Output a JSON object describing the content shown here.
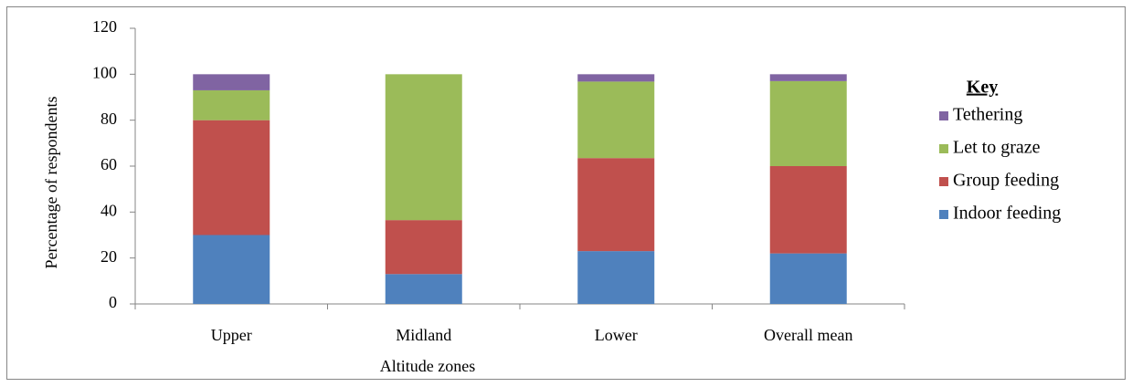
{
  "chart_data": {
    "type": "stacked_bar",
    "x_label": "Altitude zones",
    "y_label": "Percentage of respondents",
    "legend_title": "Key",
    "categories": [
      "Upper",
      "Midland",
      "Lower",
      "Overall mean"
    ],
    "series": [
      {
        "name": "Indoor feeding",
        "color": "#4f81bd",
        "values": [
          30,
          13,
          23,
          22
        ]
      },
      {
        "name": "Group feeding",
        "color": "#c0504d",
        "values": [
          50,
          23.5,
          40.5,
          38
        ]
      },
      {
        "name": "Let to graze",
        "color": "#9bbb59",
        "values": [
          13,
          63.5,
          33.3,
          37
        ]
      },
      {
        "name": "Tethering",
        "color": "#8064a2",
        "values": [
          7,
          0,
          3.2,
          3
        ]
      }
    ],
    "ylim": [
      0,
      120
    ],
    "yticks": [
      0,
      20,
      40,
      60,
      80,
      100,
      120
    ],
    "legend": "right",
    "grid": false
  }
}
